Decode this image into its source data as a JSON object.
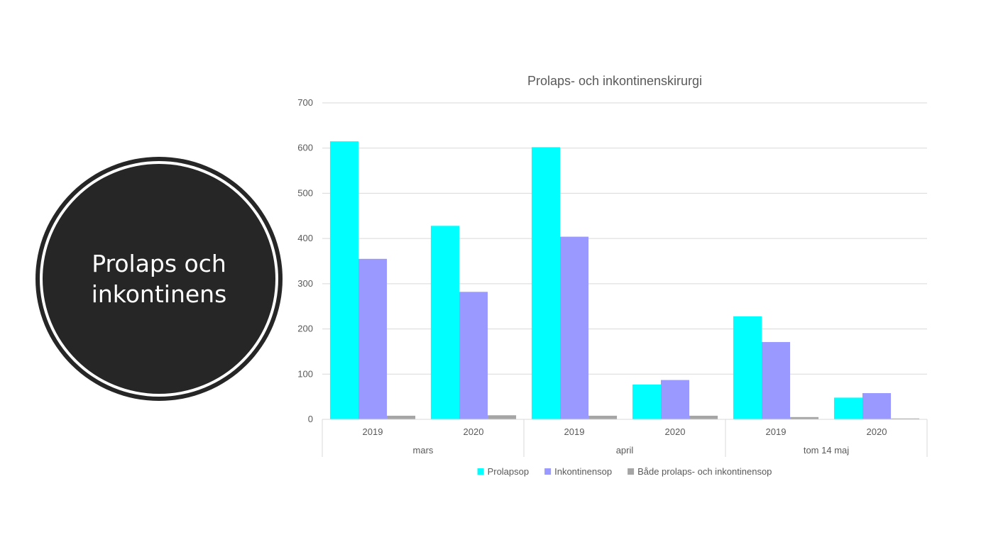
{
  "badge": {
    "line1": "Prolaps och",
    "line2": "inkontinens"
  },
  "chart_data": {
    "type": "bar",
    "title": "Prolaps- och inkontinenskirurgi",
    "xlabel": "",
    "ylabel": "",
    "ylim": [
      0,
      700
    ],
    "yticks": [
      0,
      100,
      200,
      300,
      400,
      500,
      600,
      700
    ],
    "grid": true,
    "legend_position": "bottom",
    "groups": [
      {
        "label": "mars",
        "categories": [
          "2019",
          "2020"
        ]
      },
      {
        "label": "april",
        "categories": [
          "2019",
          "2020"
        ]
      },
      {
        "label": "tom 14 maj",
        "categories": [
          "2019",
          "2020"
        ]
      }
    ],
    "series": [
      {
        "name": "Prolapsop",
        "color": "#00FFFF",
        "values": [
          615,
          428,
          602,
          77,
          228,
          48
        ]
      },
      {
        "name": "Inkontinensop",
        "color": "#9999FF",
        "values": [
          355,
          282,
          404,
          87,
          171,
          58
        ]
      },
      {
        "name": "Både prolaps- och inkontinensop",
        "color": "#A5A5A5",
        "values": [
          8,
          9,
          8,
          8,
          5,
          2
        ]
      }
    ]
  }
}
